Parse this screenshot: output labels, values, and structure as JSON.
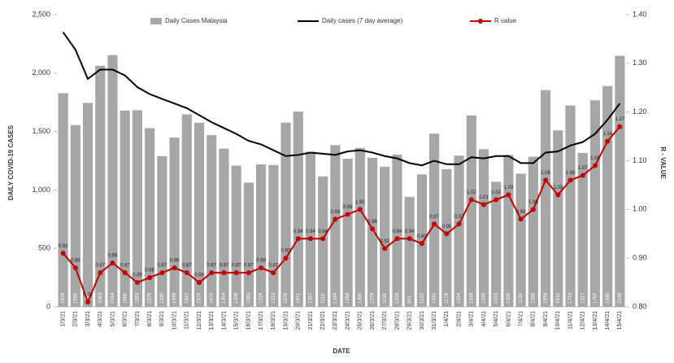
{
  "chart_data": {
    "type": "bar",
    "y_label": "DAILY COVID-19 CASES",
    "y2_label": "R - VALUE",
    "x_label": "DATE",
    "legend": "top",
    "categories": [
      "1/3/21",
      "2/3/21",
      "3/3/21",
      "4/3/21",
      "5/3/21",
      "6/3/21",
      "7/3/21",
      "8/3/21",
      "9/3/21",
      "10/3/21",
      "11/3/21",
      "12/3/21",
      "13/3/21",
      "14/3/21",
      "15/3/21",
      "16/3/21",
      "17/3/21",
      "18/3/21",
      "19/3/21",
      "20/3/21",
      "21/3/21",
      "22/3/21",
      "23/3/21",
      "24/3/21",
      "25/3/21",
      "26/3/21",
      "27/3/21",
      "28/3/21",
      "29/3/21",
      "30/3/21",
      "31/3/21",
      "1/4/21",
      "2/4/21",
      "3/4/21",
      "4/4/21",
      "5/4/21",
      "6/4/21",
      "7/4/21",
      "8/4/21",
      "9/4/21",
      "10/4/21",
      "11/4/21",
      "12/4/21",
      "13/4/21",
      "14/4/21",
      "15/4/21"
    ],
    "series": [
      {
        "name": "Daily Cases Malaysia",
        "type": "bar",
        "color": "#a6a6a6",
        "values": [
          1828,
          1555,
          1745,
          2063,
          2154,
          1680,
          1683,
          1529,
          1290,
          1448,
          1647,
          1575,
          1470,
          1354,
          1208,
          1063,
          1219,
          1213,
          1576,
          1671,
          1327,
          1116,
          1384,
          1268,
          1360,
          1275,
          1199,
          1302,
          941,
          1133,
          1482,
          1178,
          1294,
          1638,
          1349,
          1070,
          1300,
          1139,
          1285,
          1854,
          1510,
          1723,
          1317,
          1767,
          1889,
          2148
        ]
      },
      {
        "name": "Daily cases (7 day average)",
        "type": "line",
        "color": "#000000",
        "values": [
          2350,
          2200,
          1950,
          2030,
          2030,
          1980,
          1880,
          1820,
          1780,
          1740,
          1700,
          1640,
          1580,
          1530,
          1480,
          1420,
          1390,
          1340,
          1290,
          1300,
          1320,
          1310,
          1300,
          1330,
          1340,
          1320,
          1290,
          1270,
          1230,
          1210,
          1250,
          1220,
          1220,
          1280,
          1270,
          1290,
          1290,
          1230,
          1230,
          1320,
          1330,
          1380,
          1410,
          1480,
          1600,
          1740
        ]
      },
      {
        "name": "R value",
        "type": "line",
        "axis": "y2",
        "color": "#c00000",
        "values": [
          0.91,
          0.88,
          0.81,
          0.87,
          0.89,
          0.87,
          0.85,
          0.86,
          0.87,
          0.88,
          0.87,
          0.85,
          0.87,
          0.87,
          0.87,
          0.87,
          0.88,
          0.87,
          0.9,
          0.94,
          0.94,
          0.94,
          0.98,
          0.99,
          1.0,
          0.96,
          0.92,
          0.94,
          0.94,
          0.93,
          0.97,
          0.95,
          0.97,
          1.02,
          1.01,
          1.02,
          1.03,
          0.98,
          1.0,
          1.06,
          1.03,
          1.06,
          1.07,
          1.09,
          1.14,
          1.17
        ],
        "value_labels": [
          "0.91",
          "0.88",
          "0.81",
          "0.87",
          "0.89",
          "0.87",
          "0.85",
          "0.86",
          "0.87",
          "0.88",
          "0.87",
          "0.85",
          "0.87",
          "0.87",
          "0.87",
          "0.87",
          "0.88",
          "0.87",
          "0.90",
          "0.94",
          "0.94",
          "0.94",
          "0.98",
          "0.99",
          "1.00",
          "0.96",
          "0.92",
          "0.94",
          "0.94",
          "0.93",
          "0.97",
          "0.95",
          "0.97",
          "1.02",
          "1.01",
          "1.02",
          "1.03",
          "0.98",
          "1.00",
          "1.06",
          "1.03",
          "1.06",
          "1.07",
          "1.09",
          "1.14",
          "1.17"
        ]
      }
    ],
    "ylim": [
      0,
      2500
    ],
    "yticks": [
      0,
      500,
      {
        "value": 1000,
        "label": "1,000"
      },
      {
        "value": 1500,
        "label": "1,500"
      },
      {
        "value": 2000,
        "label": "2,000"
      },
      {
        "value": 2500,
        "label": "2,500"
      }
    ],
    "y2lim": [
      0.8,
      1.4
    ],
    "y2ticks": [
      {
        "value": 0.8,
        "label": "0.80"
      },
      {
        "value": 0.9,
        "label": "0.90"
      },
      {
        "value": 1.0,
        "label": "1.00"
      },
      {
        "value": 1.1,
        "label": "1.10"
      },
      {
        "value": 1.2,
        "label": "1.20"
      },
      {
        "value": 1.3,
        "label": "1.30"
      },
      {
        "value": 1.4,
        "label": "1.40"
      }
    ]
  }
}
